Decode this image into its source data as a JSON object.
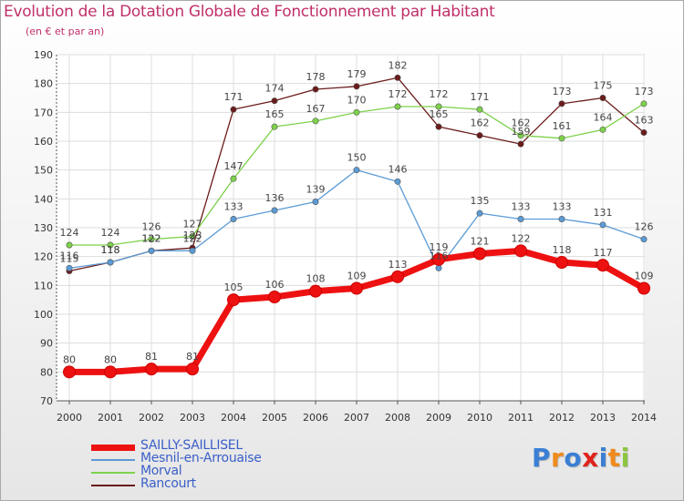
{
  "title": "Evolution de la Dotation Globale de Fonctionnement par Habitant",
  "subtitle": "(en € et par an)",
  "logo": {
    "letters": [
      "P",
      "r",
      "o",
      "x",
      "i",
      "t",
      "i"
    ],
    "colors": [
      "#3b7fd4",
      "#f08a1c",
      "#3b7fd4",
      "#e0231b",
      "#3b7fd4",
      "#f08a1c",
      "#8cc63f"
    ]
  },
  "chart_data": {
    "type": "line",
    "title": "Evolution de la Dotation Globale de Fonctionnement par Habitant",
    "ylabel": "(en € et par an)",
    "xlabel": "",
    "x": [
      "2000",
      "2001",
      "2002",
      "2003",
      "2004",
      "2005",
      "2006",
      "2007",
      "2008",
      "2009",
      "2010",
      "2011",
      "2012",
      "2013",
      "2014"
    ],
    "ylim": [
      70,
      190
    ],
    "yticks": [
      "70",
      "80",
      "90",
      "100",
      "110",
      "120",
      "130",
      "140",
      "150",
      "160",
      "170",
      "180",
      "190"
    ],
    "grid": true,
    "series": [
      {
        "name": "SAILLY-SAILLISEL",
        "color": "#ee1111",
        "values": [
          80,
          80,
          81,
          81,
          105,
          106,
          108,
          109,
          113,
          119,
          121,
          122,
          118,
          117,
          109
        ],
        "labels": [
          "80",
          "80",
          "81",
          "81",
          "105",
          "106",
          "108",
          "109",
          "113",
          "119",
          "121",
          "122",
          "118",
          "117",
          "109"
        ]
      },
      {
        "name": "Mesnil-en-Arrouaise",
        "color": "#5b9bd5",
        "values": [
          116,
          118,
          122,
          122,
          133,
          136,
          139,
          150,
          146,
          116,
          135,
          133,
          133,
          131,
          126
        ],
        "labels": [
          "116",
          "118",
          "122",
          "122",
          "133",
          "136",
          "139",
          "150",
          "146",
          "116",
          "135",
          "133",
          "133",
          "131",
          "126"
        ]
      },
      {
        "name": "Morval",
        "color": "#7dd14a",
        "values": [
          124,
          124,
          126,
          127,
          147,
          165,
          167,
          170,
          172,
          172,
          171,
          162,
          161,
          164,
          173
        ],
        "labels": [
          "124",
          "124",
          "126",
          "127",
          "147",
          "165",
          "167",
          "170",
          "172",
          "172",
          "171",
          "162",
          "161",
          "164",
          "173"
        ]
      },
      {
        "name": "Rancourt",
        "color": "#6b1b1b",
        "values": [
          115,
          118,
          122,
          123,
          171,
          174,
          178,
          179,
          182,
          165,
          162,
          159,
          173,
          175,
          163
        ],
        "labels": [
          "115",
          "118",
          "122",
          "123",
          "171",
          "174",
          "178",
          "179",
          "182",
          "165",
          "162",
          "159",
          "173",
          "175",
          "163"
        ]
      }
    ],
    "legend_position": "bottom-left"
  }
}
